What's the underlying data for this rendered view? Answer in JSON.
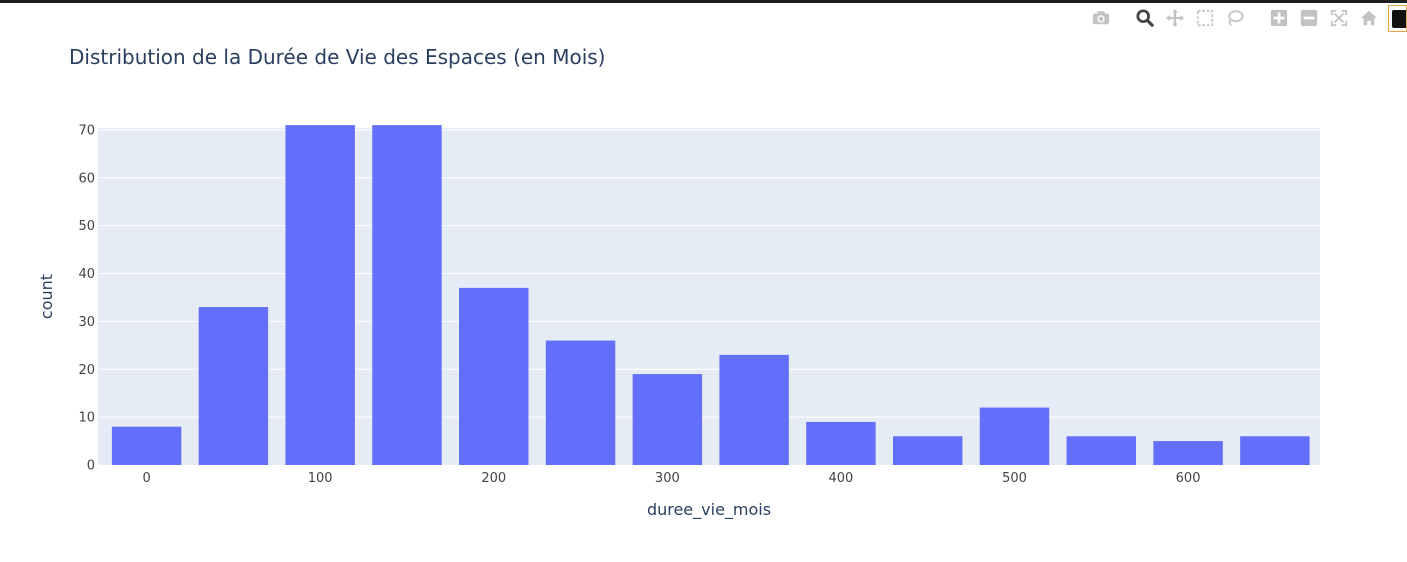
{
  "chart_data": {
    "type": "bar",
    "title": "Distribution de la Durée de Vie des Espaces (en Mois)",
    "xlabel": "duree_vie_mois",
    "ylabel": "count",
    "bin_width": 50,
    "bins": [
      {
        "x0": -25,
        "x1": 25,
        "count": 8
      },
      {
        "x0": 25,
        "x1": 75,
        "count": 33
      },
      {
        "x0": 75,
        "x1": 125,
        "count": 71
      },
      {
        "x0": 125,
        "x1": 175,
        "count": 71
      },
      {
        "x0": 175,
        "x1": 225,
        "count": 37
      },
      {
        "x0": 225,
        "x1": 275,
        "count": 26
      },
      {
        "x0": 275,
        "x1": 325,
        "count": 19
      },
      {
        "x0": 325,
        "x1": 375,
        "count": 23
      },
      {
        "x0": 375,
        "x1": 425,
        "count": 9
      },
      {
        "x0": 425,
        "x1": 475,
        "count": 6
      },
      {
        "x0": 475,
        "x1": 525,
        "count": 12
      },
      {
        "x0": 525,
        "x1": 575,
        "count": 6
      },
      {
        "x0": 575,
        "x1": 625,
        "count": 5
      },
      {
        "x0": 625,
        "x1": 675,
        "count": 6
      }
    ],
    "xlim": [
      -28,
      676
    ],
    "ylim": [
      0,
      70.4
    ],
    "x_ticks": [
      "0",
      "100",
      "200",
      "300",
      "400",
      "500",
      "600"
    ],
    "x_tick_values": [
      0,
      100,
      200,
      300,
      400,
      500,
      600
    ],
    "y_ticks": [
      "0",
      "10",
      "20",
      "30",
      "40",
      "50",
      "60",
      "70"
    ],
    "y_tick_values": [
      0,
      10,
      20,
      30,
      40,
      50,
      60,
      70
    ],
    "grid": true,
    "colors": {
      "bar": "#636efa",
      "plot_bg": "#e5ecf6",
      "grid": "#ffffff",
      "text": "#2a3f5f",
      "tick_text": "#444444"
    }
  },
  "modebar": {
    "icons": [
      "camera-icon",
      "zoom-icon",
      "pan-icon",
      "box-select-icon",
      "lasso-select-icon",
      "zoom-in-icon",
      "zoom-out-icon",
      "autoscale-icon",
      "reset-axes-icon"
    ]
  }
}
